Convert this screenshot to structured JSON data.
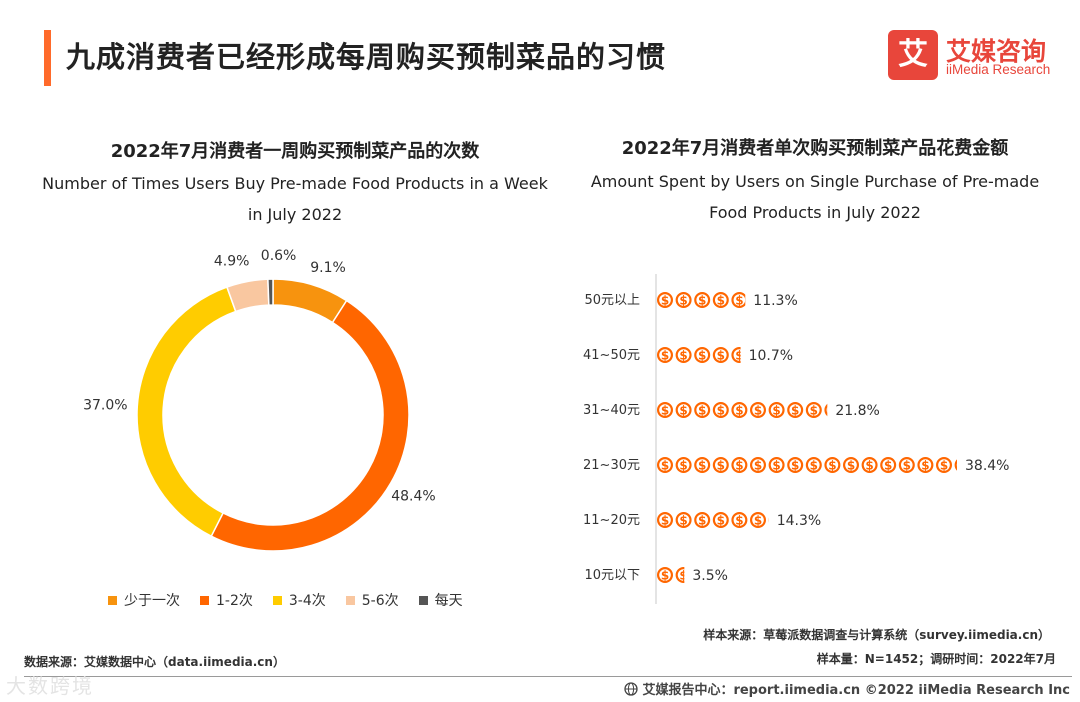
{
  "header": {
    "title": "九成消费者已经形成每周购买预制菜品的习惯",
    "logo": {
      "mark": "艾",
      "name_cn": "艾媒咨询",
      "name_en": "iiMedia Research"
    }
  },
  "colors": {
    "accent": "#ff6a2a",
    "brand": "#e8463b"
  },
  "left_chart_title": {
    "cn": "2022年7月消费者一周购买预制菜产品的次数",
    "en": "Number of Times Users Buy Pre-made Food Products in a Week in July 2022"
  },
  "right_chart_title": {
    "cn": "2022年7月消费者单次购买预制菜产品花费金额",
    "en": "Amount Spent by Users on Single Purchase of Pre-made Food Products in July 2022"
  },
  "chart_data": [
    {
      "type": "pie",
      "donut": true,
      "categories": [
        "少于一次",
        "1-2次",
        "3-4次",
        "5-6次",
        "每天"
      ],
      "values": [
        9.1,
        48.4,
        37.0,
        4.9,
        0.6
      ],
      "value_labels": [
        "9.1%",
        "48.4%",
        "37.0%",
        "4.9%",
        "0.6%"
      ],
      "colors": [
        "#f7930e",
        "#ff6600",
        "#ffcc00",
        "#f9c7a0",
        "#555555"
      ],
      "legend_position": "bottom",
      "unit": "%"
    },
    {
      "type": "bar",
      "orientation": "horizontal",
      "pictograph_icon": "dollar-coin-icon",
      "categories": [
        "50元以上",
        "41~50元",
        "31~40元",
        "21~30元",
        "11~20元",
        "10元以下"
      ],
      "values": [
        11.3,
        10.7,
        21.8,
        38.4,
        14.3,
        3.5
      ],
      "value_labels": [
        "11.3%",
        "10.7%",
        "21.8%",
        "38.4%",
        "14.3%",
        "3.5%"
      ],
      "color": "#ff6600",
      "unit": "%"
    }
  ],
  "footer": {
    "source_right": "样本来源：草莓派数据调查与计算系统（survey.iimedia.cn）",
    "sample_info": "样本量：N=1452；调研时间：2022年7月",
    "source_left": "数据来源：艾媒数据中心（data.iimedia.cn）",
    "report": "艾媒报告中心：report.iimedia.cn   ©2022  iiMedia Research  Inc",
    "watermark": "大数跨境"
  }
}
